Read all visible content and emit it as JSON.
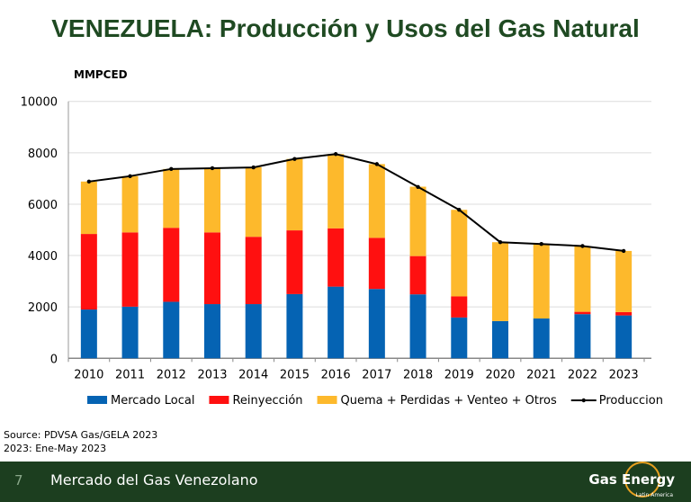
{
  "title": "VENEZUELA: Producción y Usos del Gas Natural",
  "chart_data": {
    "type": "bar",
    "stacked": true,
    "ylabel": "MMPCED",
    "ylim": [
      0,
      10000
    ],
    "yticks": [
      0,
      2000,
      4000,
      6000,
      8000,
      10000
    ],
    "grid": true,
    "legend_position": "bottom",
    "categories": [
      "2010",
      "2011",
      "2012",
      "2013",
      "2014",
      "2015",
      "2016",
      "2017",
      "2018",
      "2019",
      "2020",
      "2021",
      "2022",
      "2023"
    ],
    "series": [
      {
        "name": "Mercado Local",
        "color": "#0563b3",
        "values": [
          1900,
          2010,
          2200,
          2110,
          2110,
          2500,
          2790,
          2700,
          2490,
          1590,
          1450,
          1550,
          1720,
          1670
        ]
      },
      {
        "name": "Reinyección",
        "color": "#ff1010",
        "values": [
          2940,
          2890,
          2880,
          2790,
          2620,
          2480,
          2270,
          1990,
          1490,
          820,
          0,
          0,
          90,
          130
        ]
      },
      {
        "name": "Quema + Perdidas + Venteo + Otros",
        "color": "#fdb92c",
        "values": [
          2040,
          2190,
          2290,
          2500,
          2710,
          2780,
          2890,
          2870,
          2700,
          3370,
          3070,
          2900,
          2560,
          2380
        ]
      }
    ],
    "line_series": {
      "name": "Produccion",
      "color": "#000000",
      "values": [
        6880,
        7090,
        7370,
        7400,
        7430,
        7760,
        7950,
        7560,
        6670,
        5780,
        4520,
        4450,
        4370,
        4180
      ]
    }
  },
  "notes": [
    "Source: PDVSA Gas/GELA 2023",
    "2023: Ene-May 2023"
  ],
  "footer": {
    "page": "7",
    "title": "Mercado del Gas Venezolano",
    "logo": "Gas Energy",
    "logo_sub": "Latin America"
  }
}
